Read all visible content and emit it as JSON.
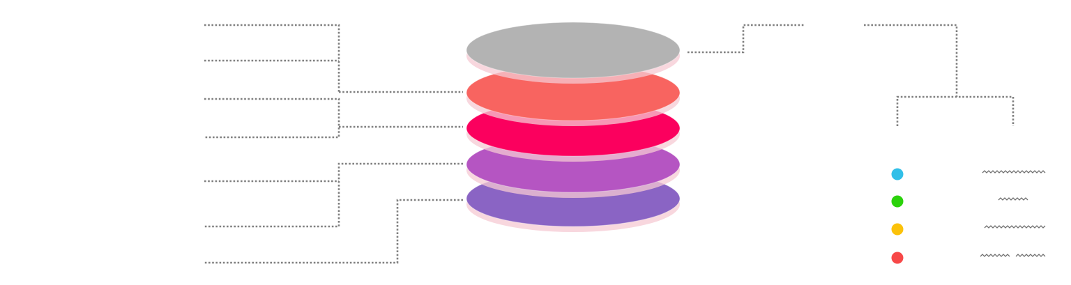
{
  "layers": [
    {
      "id": "top",
      "color": "#b3b3b3"
    },
    {
      "id": "layer-2",
      "color": "#f86460"
    },
    {
      "id": "layer-3",
      "color": "#fb005e"
    },
    {
      "id": "layer-4",
      "color": "#b555c2"
    },
    {
      "id": "bottom",
      "color": "#8a64c4"
    }
  ],
  "legend": [
    {
      "id": "blue",
      "color": "#31bfe8"
    },
    {
      "id": "green",
      "color": "#2bd20b"
    },
    {
      "id": "yellow",
      "color": "#fbc20a"
    },
    {
      "id": "red",
      "color": "#f74848"
    }
  ]
}
